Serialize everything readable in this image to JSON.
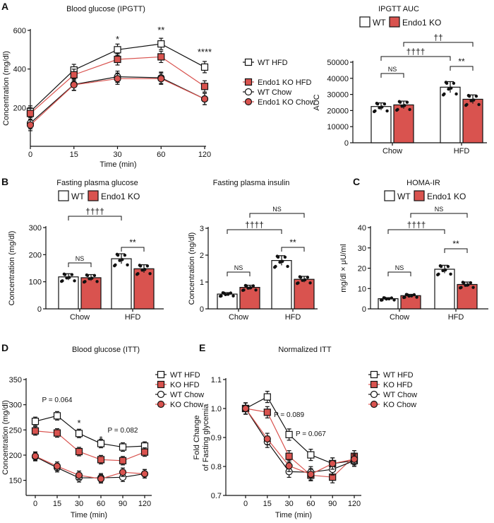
{
  "colors": {
    "wt": "#ffffff",
    "ko": "#d9534f",
    "line_wt": "#111111",
    "line_ko": "#d9534f"
  },
  "chart_data": [
    {
      "panel": "A",
      "type": "line",
      "title": "Blood glucose (IPGTT)",
      "xlabel": "Time (min)",
      "ylabel": "Concentration (mg/dl)",
      "categories": [
        "0",
        "15",
        "30",
        "60",
        "120"
      ],
      "ylim": [
        0,
        600
      ],
      "yticks": [
        200,
        400,
        600
      ],
      "series": [
        {
          "name": "WT HFD",
          "marker": "square-open",
          "values": [
            180,
            395,
            500,
            530,
            410
          ]
        },
        {
          "name": "Endo1 KO HFD",
          "marker": "square-filled",
          "values": [
            170,
            370,
            450,
            463,
            310
          ]
        },
        {
          "name": "WT Chow",
          "marker": "circle-open",
          "values": [
            120,
            320,
            360,
            355,
            245
          ]
        },
        {
          "name": "Endo1 KO Chow",
          "marker": "circle-filled",
          "values": [
            110,
            318,
            350,
            350,
            245
          ]
        }
      ],
      "annotations": [
        {
          "x": "30",
          "text": "*"
        },
        {
          "x": "60",
          "text": "**"
        },
        {
          "x": "120",
          "text": "****"
        }
      ],
      "legend": "right"
    },
    {
      "panel": "",
      "type": "bar",
      "title": "IPGTT AUC",
      "ylabel": "AUC",
      "categories": [
        "Chow",
        "HFD"
      ],
      "ylim": [
        0,
        50000
      ],
      "yticks": [
        0,
        10000,
        20000,
        30000,
        40000,
        50000
      ],
      "series": [
        {
          "name": "WT",
          "values": [
            22500,
            34500
          ]
        },
        {
          "name": "Endo1 KO",
          "values": [
            23500,
            27000
          ]
        }
      ],
      "annotations": [
        "NS",
        "**",
        "††††",
        "††"
      ],
      "legend": "top"
    },
    {
      "panel": "B",
      "type": "bar",
      "title": "Fasting plasma glucose",
      "ylabel": "Concentration (mg/dl)",
      "categories": [
        "Chow",
        "HFD"
      ],
      "ylim": [
        0,
        300
      ],
      "yticks": [
        0,
        100,
        200,
        300
      ],
      "series": [
        {
          "name": "WT",
          "values": [
            118,
            185
          ]
        },
        {
          "name": "Endo1 KO",
          "values": [
            115,
            148
          ]
        }
      ],
      "annotations": [
        "NS",
        "**",
        "††††"
      ],
      "legend": "top"
    },
    {
      "panel": "",
      "type": "bar",
      "title": "Fasting plasma insulin",
      "ylabel": "Concentration (ng/dl)",
      "categories": [
        "Chow",
        "HFD"
      ],
      "ylim": [
        0,
        3
      ],
      "yticks": [
        0,
        1,
        2,
        3
      ],
      "series": [
        {
          "name": "WT",
          "values": [
            0.55,
            1.8
          ]
        },
        {
          "name": "Endo1 KO",
          "values": [
            0.8,
            1.1
          ]
        }
      ],
      "annotations": [
        "NS",
        "**",
        "††††",
        "NS"
      ],
      "legend": "none"
    },
    {
      "panel": "C",
      "type": "bar",
      "title": "HOMA-IR",
      "ylabel": "mg/dl × μU/ml",
      "categories": [
        "Chow",
        "HFD"
      ],
      "ylim": [
        0,
        40
      ],
      "yticks": [
        0,
        10,
        20,
        30,
        40
      ],
      "series": [
        {
          "name": "WT",
          "values": [
            5,
            19.5
          ]
        },
        {
          "name": "Endo1 KO",
          "values": [
            6.5,
            12
          ]
        }
      ],
      "annotations": [
        "NS",
        "**",
        "††††",
        "NS"
      ],
      "legend": "top"
    },
    {
      "panel": "D",
      "type": "line",
      "title": "Blood glucose (ITT)",
      "xlabel": "Time (min)",
      "ylabel": "Concentration (mg/dl)",
      "categories": [
        "0",
        "15",
        "30",
        "60",
        "90",
        "120"
      ],
      "ylim": [
        120,
        350
      ],
      "yticks": [
        150,
        200,
        250,
        300,
        350
      ],
      "series": [
        {
          "name": "WT HFD",
          "marker": "square-open",
          "values": [
            267,
            278,
            243,
            223,
            216,
            218
          ]
        },
        {
          "name": "KO HFD",
          "marker": "square-filled",
          "values": [
            248,
            244,
            207,
            191,
            189,
            206
          ]
        },
        {
          "name": "WT Chow",
          "marker": "circle-open",
          "values": [
            197,
            175,
            155,
            155,
            156,
            163
          ]
        },
        {
          "name": "KO Chow",
          "marker": "circle-filled",
          "values": [
            198,
            178,
            160,
            153,
            166,
            163
          ]
        }
      ],
      "annotations": [
        {
          "x": "15",
          "text": "P = 0.064"
        },
        {
          "x": "30",
          "text": "*"
        },
        {
          "x": "60",
          "text": "*"
        },
        {
          "x": "90",
          "text": "P = 0.082"
        }
      ],
      "legend": "top-right"
    },
    {
      "panel": "E",
      "type": "line",
      "title": "Normalized ITT",
      "xlabel": "Time (min)",
      "ylabel": "Fold Change\nof Fasting glycemia",
      "categories": [
        "0",
        "15",
        "30",
        "60",
        "90",
        "120"
      ],
      "ylim": [
        0.7,
        1.1
      ],
      "yticks": [
        0.7,
        0.8,
        0.9,
        1.0,
        1.1
      ],
      "series": [
        {
          "name": "WT HFD",
          "marker": "square-open",
          "values": [
            1.0,
            1.04,
            0.91,
            0.84,
            0.81,
            0.82
          ]
        },
        {
          "name": "KO HFD",
          "marker": "square-filled",
          "values": [
            1.0,
            0.987,
            0.835,
            0.77,
            0.763,
            0.835
          ]
        },
        {
          "name": "WT Chow",
          "marker": "circle-open",
          "values": [
            1.0,
            0.885,
            0.782,
            0.78,
            0.79,
            0.82
          ]
        },
        {
          "name": "KO Chow",
          "marker": "circle-filled",
          "values": [
            1.0,
            0.895,
            0.802,
            0.773,
            0.81,
            0.825
          ]
        }
      ],
      "annotations": [
        {
          "x": "30",
          "text": "P = 0.089"
        },
        {
          "x": "60",
          "text": "P = 0.067"
        }
      ],
      "legend": "top-right"
    }
  ]
}
